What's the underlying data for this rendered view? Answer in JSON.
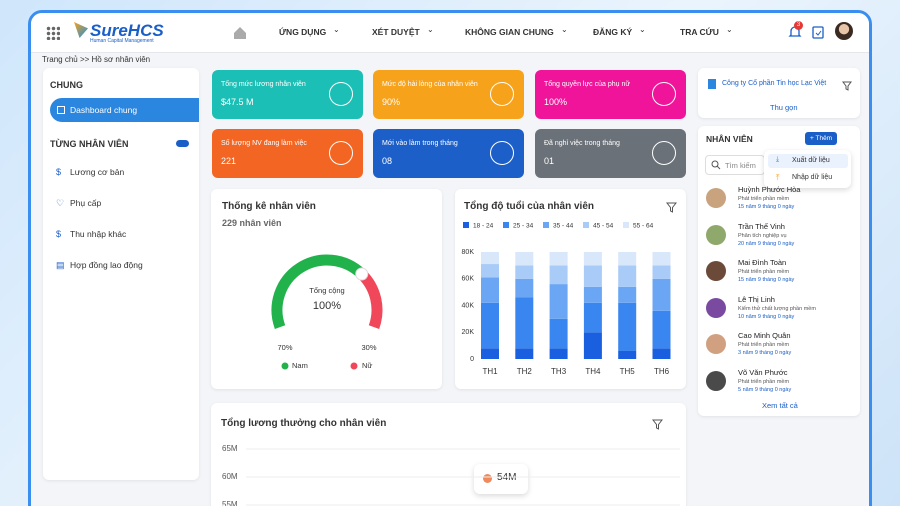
{
  "header": {
    "logo": "SureHCS",
    "logo_sub": "Human Capital Management",
    "nav": [
      "ỨNG DỤNG",
      "XÉT DUYỆT",
      "KHÔNG GIAN CHUNG",
      "ĐĂNG KÝ",
      "TRA CỨU"
    ],
    "badge": "3"
  },
  "breadcrumb": "Trang chủ >> Hồ sơ nhân viên",
  "sidebar": {
    "section1": "CHUNG",
    "active": "Dashboard chung",
    "section2": "TỪNG NHÂN VIÊN",
    "items": [
      "Lương cơ bản",
      "Phụ cấp",
      "Thu nhập khác",
      "Hợp đồng lao động"
    ]
  },
  "kpis": [
    {
      "label": "Tổng mức lương nhân viên",
      "value": "$47.5 M",
      "color": "#1cbfb5"
    },
    {
      "label": "Mức độ hài lòng của nhân viên",
      "value": "90%",
      "color": "#f7a21b"
    },
    {
      "label": "Tổng quyền lực của phụ nữ",
      "value": "100%",
      "color": "#ef1499"
    },
    {
      "label": "Số lượng NV đang làm việc",
      "value": "221",
      "color": "#f26522"
    },
    {
      "label": "Mới vào làm trong tháng",
      "value": "08",
      "color": "#1d5fc8"
    },
    {
      "label": "Đã nghỉ việc trong tháng",
      "value": "01",
      "color": "#6b7178"
    }
  ],
  "gauge_chart": {
    "type": "gauge",
    "title": "Thống kê nhân viên",
    "subtitle": "229 nhân viên",
    "center_label": "Tổng cộng",
    "center_value": "100%",
    "categories": [
      "Nam",
      "Nữ"
    ],
    "values": [
      70,
      30
    ],
    "value_labels": [
      "70%",
      "30%"
    ],
    "colors": [
      "#22b24c",
      "#f0475a"
    ]
  },
  "age_chart": {
    "type": "bar",
    "stacked": true,
    "title": "Tổng độ tuổi của nhân viên",
    "categories": [
      "TH1",
      "TH2",
      "TH3",
      "TH4",
      "TH5",
      "TH6"
    ],
    "series": [
      {
        "name": "18 - 24",
        "color": "#1a5fe0",
        "values": [
          8000,
          8000,
          8000,
          20000,
          6000,
          8000
        ]
      },
      {
        "name": "25 - 34",
        "color": "#3a86f0",
        "values": [
          34000,
          38000,
          22000,
          22000,
          36000,
          28000
        ]
      },
      {
        "name": "35 - 44",
        "color": "#6aa6f4",
        "values": [
          19000,
          14000,
          26000,
          12000,
          12000,
          24000
        ]
      },
      {
        "name": "45 - 54",
        "color": "#a9cbf7",
        "values": [
          10000,
          10000,
          14000,
          16000,
          16000,
          10000
        ]
      },
      {
        "name": "55 - 64",
        "color": "#d9e7fb",
        "values": [
          9000,
          10000,
          10000,
          10000,
          10000,
          10000
        ]
      }
    ],
    "ylim": [
      0,
      80000
    ],
    "yticks": [
      0,
      {
        "value": 20000,
        "label": "20K"
      },
      {
        "value": 40000,
        "label": "40K"
      },
      {
        "value": 60000,
        "label": "60K"
      },
      {
        "value": 80000,
        "label": "80K"
      }
    ]
  },
  "salary_chart": {
    "type": "line",
    "title": "Tổng lương thưởng cho nhân viên",
    "ylim": [
      55000000,
      65000000
    ],
    "yticks": [
      {
        "value": 65000000,
        "label": "65M"
      },
      {
        "value": 60000000,
        "label": "60M"
      },
      {
        "value": 55000000,
        "label": "55M"
      }
    ],
    "tooltip": "54M"
  },
  "panel": {
    "company": "Công ty Cổ phần Tin học Lạc Việt",
    "collapse": "Thu gọn",
    "title": "NHÂN VIÊN",
    "add": "+ Thêm",
    "search": "Tìm kiếm",
    "menu": [
      "Xuất dữ liệu",
      "Nhập dữ liệu"
    ],
    "employees": [
      {
        "name": "Huỳnh Phước Hòa",
        "role": "Phát triển phần mềm",
        "tenure": "15 năm 9 tháng 0 ngày"
      },
      {
        "name": "Trần Thế Vinh",
        "role": "Phân tích nghiệp vụ",
        "tenure": "20 năm 9 tháng 0 ngày"
      },
      {
        "name": "Mai Đình Toàn",
        "role": "Phát triển phần mềm",
        "tenure": "15 năm 9 tháng 0 ngày"
      },
      {
        "name": "Lê Thị Linh",
        "role": "Kiểm thử chất lượng phần mềm",
        "tenure": "10 năm 9 tháng 0 ngày"
      },
      {
        "name": "Cao Minh Quân",
        "role": "Phát triển phần mềm",
        "tenure": "3 năm 9 tháng 0 ngày"
      },
      {
        "name": "Võ Văn Phước",
        "role": "Phát triển phần mềm",
        "tenure": "5 năm 9 tháng 0 ngày"
      }
    ],
    "see_all": "Xem tất cả"
  }
}
